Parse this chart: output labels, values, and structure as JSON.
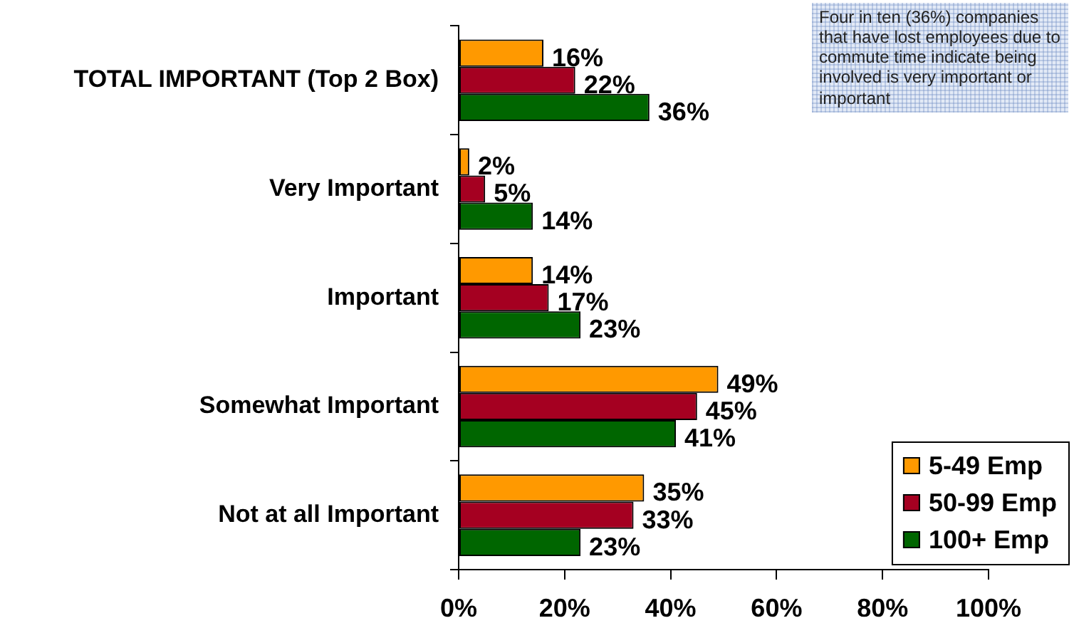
{
  "chart_data": {
    "type": "bar",
    "orientation": "horizontal",
    "categories": [
      "TOTAL IMPORTANT (Top 2 Box)",
      "Very Important",
      "Important",
      "Somewhat Important",
      "Not at all Important"
    ],
    "series": [
      {
        "name": "5-49 Emp",
        "color": "#ff9900",
        "values": [
          16,
          2,
          14,
          49,
          35
        ],
        "value_labels": [
          "16%",
          "2%",
          "14%",
          "49%",
          "35%"
        ]
      },
      {
        "name": "50-99 Emp",
        "color": "#a50021",
        "values": [
          22,
          5,
          17,
          45,
          33
        ],
        "value_labels": [
          "22%",
          "5%",
          "17%",
          "45%",
          "33%"
        ]
      },
      {
        "name": "100+ Emp",
        "color": "#006600",
        "values": [
          36,
          14,
          23,
          41,
          23
        ],
        "value_labels": [
          "36%",
          "14%",
          "23%",
          "41%",
          "23%"
        ]
      }
    ],
    "xlim": [
      0,
      100
    ],
    "xticks": [
      {
        "value": 0,
        "label": "0%"
      },
      {
        "value": 20,
        "label": "20%"
      },
      {
        "value": 40,
        "label": "40%"
      },
      {
        "value": 60,
        "label": "60%"
      },
      {
        "value": 80,
        "label": "80%"
      },
      {
        "value": 100,
        "label": "100%"
      }
    ],
    "grid": false,
    "legend": "bottom right",
    "annotations": [
      "Four in ten (36%) companies that have lost employees due to commute time indicate being involved is very important or important"
    ]
  }
}
